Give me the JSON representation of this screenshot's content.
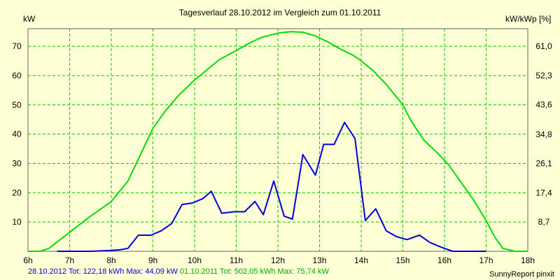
{
  "chart_data": {
    "type": "line",
    "title": "Tagesverlauf 28.10.2012 im Vergleich zum 01.10.2011",
    "ylabel_left": "kW",
    "ylabel_right": "kW/kWp [%]",
    "xlim": [
      6,
      18
    ],
    "ylim": [
      0,
      76
    ],
    "x_tick_labels": [
      "6h",
      "7h",
      "8h",
      "9h",
      "10h",
      "11h",
      "12h",
      "13h",
      "14h",
      "15h",
      "16h",
      "17h",
      "18h"
    ],
    "y_ticks_left": [
      10,
      20,
      30,
      40,
      50,
      60,
      70
    ],
    "y_ticks_right_values": [
      8.7,
      17.4,
      26.1,
      34.8,
      43.6,
      52.3,
      61.0
    ],
    "y_ticks_right_labels": [
      "8,7",
      "17,4",
      "26,1",
      "34,8",
      "43,6",
      "52,3",
      "61,0"
    ],
    "grid": true,
    "series": [
      {
        "name": "01.10.2011",
        "color": "#00dd00",
        "x": [
          6.0,
          6.3,
          6.5,
          7.0,
          7.5,
          8.0,
          8.4,
          8.7,
          9.0,
          9.3,
          9.6,
          10.0,
          10.3,
          10.6,
          11.0,
          11.3,
          11.6,
          12.0,
          12.3,
          12.6,
          12.9,
          13.2,
          13.5,
          13.8,
          14.0,
          14.3,
          14.6,
          15.0,
          15.2,
          15.5,
          15.8,
          16.1,
          16.4,
          16.7,
          17.0,
          17.2,
          17.4,
          17.7,
          18.0
        ],
        "values": [
          0,
          0,
          1,
          6.5,
          12,
          17,
          24,
          33,
          42,
          48,
          53,
          58.5,
          62,
          65.5,
          68.5,
          71,
          73,
          74.5,
          75,
          74.8,
          73.5,
          71.5,
          69,
          67,
          65,
          61.5,
          57,
          50,
          44.5,
          38,
          34,
          29.5,
          23.5,
          17.5,
          10.5,
          5,
          1,
          0,
          0
        ]
      },
      {
        "name": "28.10.2012",
        "color": "#0000dd",
        "x": [
          6.7,
          7.0,
          7.5,
          8.0,
          8.2,
          8.4,
          8.65,
          8.95,
          9.2,
          9.45,
          9.7,
          9.95,
          10.2,
          10.4,
          10.65,
          10.95,
          11.2,
          11.45,
          11.65,
          11.9,
          12.15,
          12.35,
          12.6,
          12.9,
          13.1,
          13.35,
          13.6,
          13.85,
          14.1,
          14.35,
          14.6,
          14.85,
          15.1,
          15.4,
          15.65,
          15.9,
          16.2,
          16.7,
          17.0
        ],
        "values": [
          0,
          0,
          0,
          0.3,
          0.5,
          1,
          5.5,
          5.5,
          7,
          9.5,
          16,
          16.5,
          18,
          20.5,
          13,
          13.5,
          13.5,
          17,
          12.5,
          24,
          12,
          11,
          33,
          26,
          36.5,
          36.5,
          44,
          38.5,
          10.5,
          14.5,
          7,
          5,
          4,
          5.5,
          3,
          1.5,
          0,
          0,
          0
        ]
      }
    ]
  },
  "footer": {
    "date_2012": "28.10.2012",
    "stats_2012": "Tot: 122,18 kWh Max: 44,09 kW",
    "date_2011": "01.10.2011",
    "stats_2011": "Tot: 502,05 kWh Max: 75,74 kW",
    "date_2012_color": "#0000dd",
    "date_2011_color": "#00aa00",
    "brand": "SunnyReport pinxit"
  }
}
